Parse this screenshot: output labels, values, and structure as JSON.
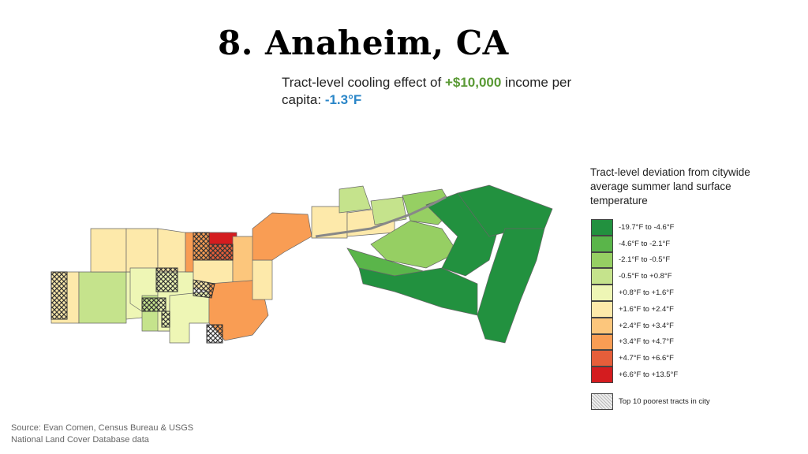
{
  "title": "8. Anaheim, CA",
  "subtitle": {
    "prefix": "Tract-level cooling effect of ",
    "income": "+$10,000",
    "middle": " income per capita: ",
    "effect": "-1.3°F"
  },
  "legend": {
    "title": "Tract-level deviation from citywide average summer land surface temperature",
    "bins": [
      {
        "label": "-19.7°F to -4.6°F",
        "color": "#22913f"
      },
      {
        "label": "-4.6°F to -2.1°F",
        "color": "#5ab54a"
      },
      {
        "label": "-2.1°F to -0.5°F",
        "color": "#96cf63"
      },
      {
        "label": "-0.5°F to +0.8°F",
        "color": "#c5e38c"
      },
      {
        "label": "+0.8°F to +1.6°F",
        "color": "#eef6b5"
      },
      {
        "label": "+1.6°F to +2.4°F",
        "color": "#fde9aa"
      },
      {
        "label": "+2.4°F to +3.4°F",
        "color": "#fcc67c"
      },
      {
        "label": "+3.4°F to +4.7°F",
        "color": "#f99d54"
      },
      {
        "label": "+4.7°F to +6.6°F",
        "color": "#e65e3a"
      },
      {
        "label": "+6.6°F to +13.5°F",
        "color": "#d41c1f"
      }
    ],
    "poorest_label": "Top 10 poorest tracts in city"
  },
  "source": {
    "line1": "Source: Evan Comen, Census Bureau & USGS",
    "line2": "National Land Cover Database data"
  }
}
